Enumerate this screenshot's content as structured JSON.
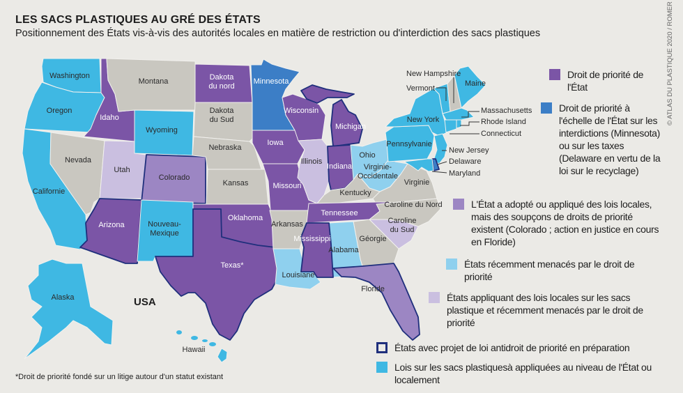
{
  "title": "LES SACS PLASTIQUES AU GRÉ DES ÉTATS",
  "subtitle": "Positionnement des États vis-à-vis des autorités locales en matière de restriction ou d'interdiction des sacs plastiques",
  "credit": "© ATLAS DU PLASTIQUE 2020 / ROMER",
  "country_label": "USA",
  "footnote": "*Droit de priorité fondé sur un litige autour d'un statut existant",
  "background_color": "#ebeae6",
  "categories": {
    "preemption": {
      "color": "#7b55a6"
    },
    "state_preemption": {
      "color": "#3c7ec6"
    },
    "suspected": {
      "color": "#9c86c3"
    },
    "threatened": {
      "color": "#8fd0ee"
    },
    "local_threatened": {
      "color": "#cabfe0"
    },
    "anti_preemption_bill": {
      "color": "#1f2f7c"
    },
    "laws": {
      "color": "#3fb8e3"
    },
    "none": {
      "color": "#c9c7c0"
    }
  },
  "legend": [
    {
      "category": "preemption",
      "text": "Droit de priorité de l'État"
    },
    {
      "category": "state_preemption",
      "text": "Droit de priorité à l'échelle de l'État sur les interdictions (Minnesota) ou sur les taxes (Delaware en vertu de la loi sur le recyclage)"
    },
    {
      "category": "suspected",
      "text": "L'État a adopté ou appliqué des lois locales, mais des soupçons de droits de priorité existent (Colorado ; action en justice en cours en Floride)"
    },
    {
      "category": "threatened",
      "text": "États récemment menacés par le droit de priorité"
    },
    {
      "category": "local_threatened",
      "text": "États appliquant des lois locales sur les sacs plastique et récemment menacés par le droit de priorité"
    },
    {
      "category": "anti_preemption_bill",
      "text": "États avec projet de loi antidroit de priorité en préparation"
    },
    {
      "category": "laws",
      "text": "Lois sur les sacs plastiquesà appliquées au niveau de l'État ou localement"
    }
  ],
  "states": [
    {
      "id": "WA",
      "label": "Washington",
      "category": "laws"
    },
    {
      "id": "OR",
      "label": "Oregon",
      "category": "laws"
    },
    {
      "id": "CA",
      "label": "Californie",
      "category": "laws"
    },
    {
      "id": "NV",
      "label": "Nevada",
      "category": "none"
    },
    {
      "id": "ID",
      "label": "Idaho",
      "category": "preemption"
    },
    {
      "id": "MT",
      "label": "Montana",
      "category": "none"
    },
    {
      "id": "WY",
      "label": "Wyoming",
      "category": "laws"
    },
    {
      "id": "UT",
      "label": "Utah",
      "category": "local_threatened"
    },
    {
      "id": "CO",
      "label": "Colorado",
      "category": "suspected",
      "outlined": true
    },
    {
      "id": "AZ",
      "label": "Arizona",
      "category": "preemption",
      "outlined": true
    },
    {
      "id": "NM",
      "label": "Nouveau-Mexique",
      "category": "laws"
    },
    {
      "id": "ND",
      "label": "Dakota du nord",
      "category": "preemption"
    },
    {
      "id": "SD",
      "label": "Dakota du Sud",
      "category": "none"
    },
    {
      "id": "NE",
      "label": "Nebraska",
      "category": "none"
    },
    {
      "id": "KS",
      "label": "Kansas",
      "category": "none"
    },
    {
      "id": "OK",
      "label": "Oklahoma",
      "category": "preemption"
    },
    {
      "id": "TX",
      "label": "Texas*",
      "category": "preemption",
      "outlined": true
    },
    {
      "id": "MN",
      "label": "Minnesota",
      "category": "state_preemption"
    },
    {
      "id": "IA",
      "label": "Iowa",
      "category": "preemption"
    },
    {
      "id": "MO",
      "label": "Missouri",
      "category": "preemption"
    },
    {
      "id": "AR",
      "label": "Arkansas",
      "category": "none"
    },
    {
      "id": "LA",
      "label": "Louisiane",
      "category": "threatened"
    },
    {
      "id": "WI",
      "label": "Wisconsin",
      "category": "preemption"
    },
    {
      "id": "IL",
      "label": "Illinois",
      "category": "local_threatened"
    },
    {
      "id": "MI",
      "label": "Michigan",
      "category": "preemption",
      "outlined": true
    },
    {
      "id": "MIU",
      "label": "",
      "category": "preemption",
      "outlined": true
    },
    {
      "id": "IN",
      "label": "Indiana",
      "category": "preemption",
      "outlined": true
    },
    {
      "id": "OH",
      "label": "Ohio",
      "category": "threatened"
    },
    {
      "id": "WV",
      "label": "Virginie-Occidentale",
      "category": "threatened"
    },
    {
      "id": "KY",
      "label": "Kentucky",
      "category": "none"
    },
    {
      "id": "VA",
      "label": "Virginie",
      "category": "none"
    },
    {
      "id": "TN",
      "label": "Tennessee",
      "category": "preemption"
    },
    {
      "id": "NC",
      "label": "Caroline du Nord",
      "category": "none"
    },
    {
      "id": "SC",
      "label": "Caroline du Sud",
      "category": "local_threatened"
    },
    {
      "id": "GA",
      "label": "Géorgie",
      "category": "none"
    },
    {
      "id": "AL",
      "label": "Alabama",
      "category": "threatened"
    },
    {
      "id": "MS",
      "label": "Mississippi",
      "category": "preemption",
      "outlined": true
    },
    {
      "id": "FL",
      "label": "Floride",
      "category": "suspected",
      "outlined": true
    },
    {
      "id": "PA",
      "label": "Pennsylvanie",
      "category": "laws"
    },
    {
      "id": "NY",
      "label": "New York",
      "category": "laws"
    },
    {
      "id": "VT",
      "label": "Vermont",
      "category": "laws"
    },
    {
      "id": "NH",
      "label": "New Hampshire",
      "category": "none"
    },
    {
      "id": "ME",
      "label": "Maine",
      "category": "laws"
    },
    {
      "id": "MA",
      "label": "Massachusetts",
      "category": "laws"
    },
    {
      "id": "CT",
      "label": "Connecticut",
      "category": "laws"
    },
    {
      "id": "RI",
      "label": "Rhode Island",
      "category": "laws"
    },
    {
      "id": "NJ",
      "label": "New Jersey",
      "category": "laws"
    },
    {
      "id": "DE",
      "label": "Delaware",
      "category": "state_preemption",
      "outlined": true
    },
    {
      "id": "MD",
      "label": "Maryland",
      "category": "laws"
    },
    {
      "id": "AK",
      "label": "Alaska",
      "category": "laws"
    },
    {
      "id": "HI",
      "label": "Hawaii",
      "category": "laws"
    }
  ]
}
